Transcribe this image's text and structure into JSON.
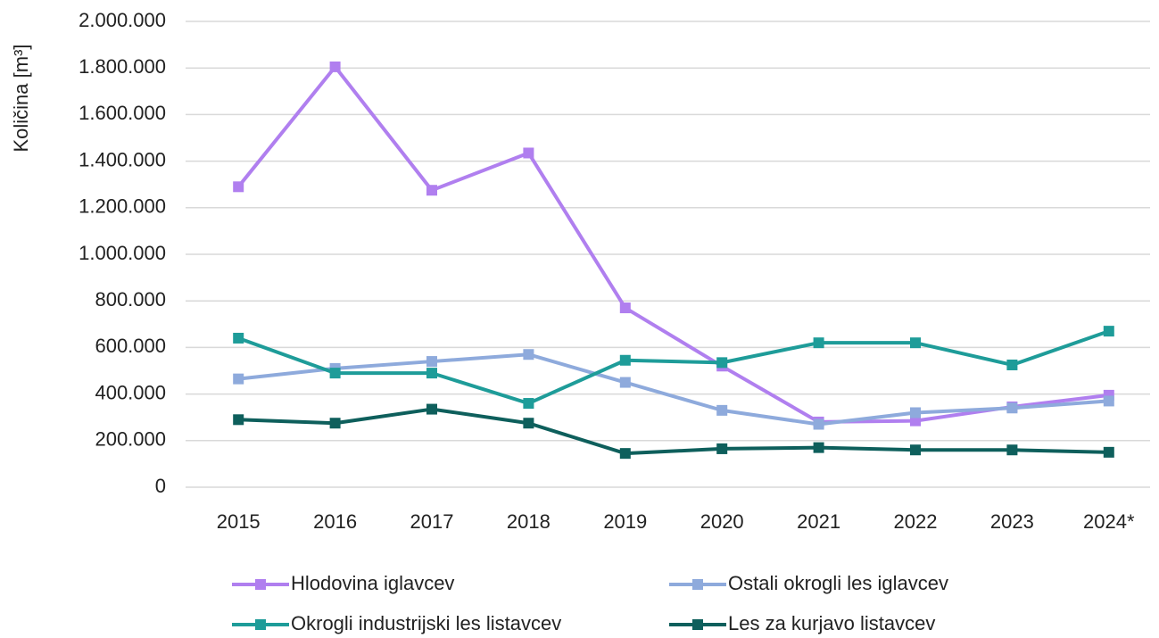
{
  "chart_data": {
    "type": "line",
    "y_label": "Količina [m³]",
    "categories": [
      "2015",
      "2016",
      "2017",
      "2018",
      "2019",
      "2020",
      "2021",
      "2022",
      "2023",
      "2024*"
    ],
    "ylim": [
      0,
      2000000
    ],
    "yticks": [
      0,
      {
        "value": 200000,
        "label": "200.000"
      },
      {
        "value": 400000,
        "label": "400.000"
      },
      {
        "value": 600000,
        "label": "600.000"
      },
      {
        "value": 800000,
        "label": "800.000"
      },
      {
        "value": 1000000,
        "label": "1.000.000"
      },
      {
        "value": 1200000,
        "label": "1.200.000"
      },
      {
        "value": 1400000,
        "label": "1.400.000"
      },
      {
        "value": 1600000,
        "label": "1.600.000"
      },
      {
        "value": 1800000,
        "label": "1.800.000"
      },
      {
        "value": 2000000,
        "label": "2.000.000"
      }
    ],
    "grid": true,
    "legend": "bottom",
    "series": [
      {
        "name": "Hlodovina iglavcev",
        "color": "#b07fef",
        "values": [
          1290000,
          1805000,
          1275000,
          1435000,
          770000,
          520000,
          280000,
          285000,
          345000,
          395000
        ]
      },
      {
        "name": "Ostali okrogli les iglavcev",
        "color": "#8eaadc",
        "values": [
          465000,
          510000,
          540000,
          570000,
          450000,
          330000,
          270000,
          320000,
          340000,
          370000
        ]
      },
      {
        "name": "Okrogli industrijski les listavcev",
        "color": "#1e9c99",
        "values": [
          640000,
          490000,
          490000,
          360000,
          545000,
          535000,
          620000,
          620000,
          525000,
          670000
        ]
      },
      {
        "name": "Les za kurjavo listavcev",
        "color": "#0e5f5c",
        "values": [
          290000,
          275000,
          335000,
          275000,
          145000,
          165000,
          170000,
          160000,
          160000,
          150000
        ]
      }
    ]
  }
}
